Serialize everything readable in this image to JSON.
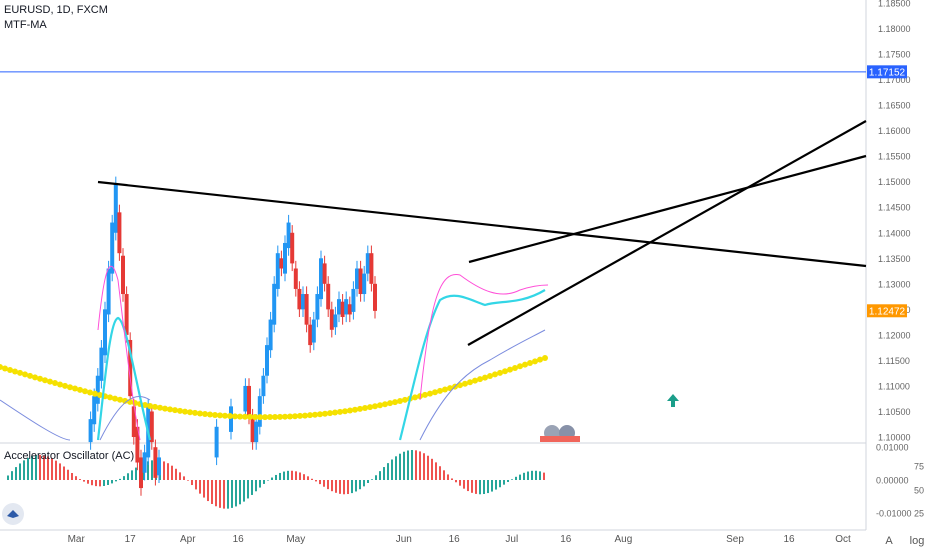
{
  "header": {
    "symbol_line": "EURUSD, 1D, FXCM",
    "indicator_line": "MTF-MA",
    "osc_label": "Accelerator Oscillator (AC)"
  },
  "price_axis": {
    "min": 1.1,
    "max": 1.185,
    "ticks": [
      "1.18500",
      "1.18000",
      "1.17500",
      "1.17000",
      "1.16500",
      "1.16000",
      "1.15500",
      "1.15000",
      "1.14500",
      "1.14000",
      "1.13500",
      "1.13000",
      "1.12500",
      "1.12000",
      "1.11500",
      "1.11000",
      "1.10500",
      "1.10000"
    ],
    "hline_price": 1.17152,
    "hline_label": "1.17152",
    "last_price": 1.12472,
    "last_label": "1.12472"
  },
  "osc_axis": {
    "ticks": [
      "0.01000",
      "0.00000",
      "-0.01000"
    ],
    "pct_ticks": [
      "75",
      "50",
      "25"
    ]
  },
  "x_axis": {
    "labels": [
      {
        "day": 2,
        "text": "Mar"
      },
      {
        "day": 17,
        "text": "17"
      },
      {
        "day": 33,
        "text": "Apr"
      },
      {
        "day": 47,
        "text": "16"
      },
      {
        "day": 63,
        "text": "May"
      },
      {
        "day": 93,
        "text": "Jun"
      },
      {
        "day": 107,
        "text": "16"
      },
      {
        "day": 123,
        "text": "Jul"
      },
      {
        "day": 138,
        "text": "16"
      },
      {
        "day": 154,
        "text": "Aug"
      },
      {
        "day": 185,
        "text": "Sep"
      },
      {
        "day": 200,
        "text": "16"
      },
      {
        "day": 215,
        "text": "Oct"
      }
    ]
  },
  "bottom_buttons": [
    "A",
    "log"
  ],
  "colors": {
    "up": "#2196f3",
    "down": "#e53935",
    "accent_pink": "#ff4fd8",
    "hline": "#2962ff",
    "last_bg": "#ff9800",
    "ma_yellow": "#f5e100",
    "ma_cyan": "#33d6e6",
    "ma_slow": "#7b8cde",
    "osc_up": "#26a69a",
    "osc_down": "#ef5350"
  },
  "chart_data": {
    "type": "candlestick",
    "price_segments": [
      {
        "name": "M2",
        "days": [
          0,
          16,
          31,
          59,
          90,
          113,
          128
        ]
      },
      {
        "name": "M1",
        "days": [
          0,
          6,
          13,
          19,
          27,
          33,
          40,
          46,
          54,
          60,
          68,
          74,
          82,
          88,
          96,
          104,
          113,
          118,
          122,
          125,
          128,
          130
        ]
      }
    ],
    "candles_prices": [
      [
        1.099,
        1.1035
      ],
      [
        1.1025,
        1.108
      ],
      [
        1.1065,
        1.112
      ],
      [
        1.111,
        1.1175
      ],
      [
        1.116,
        1.125
      ],
      [
        1.124,
        1.133
      ],
      [
        1.132,
        1.142
      ],
      [
        1.14,
        1.1495
      ],
      [
        1.144,
        1.136
      ],
      [
        1.1355,
        1.128
      ],
      [
        1.128,
        1.12
      ],
      [
        1.119,
        1.108
      ],
      [
        1.106,
        1.1
      ],
      [
        1.102,
        1.095
      ],
      [
        1.096,
        1.09
      ],
      [
        1.093,
        1.097
      ],
      [
        1.096,
        1.106
      ],
      [
        1.105,
        1.099
      ],
      [
        1.098,
        1.092
      ],
      [
        1.0925,
        1.096
      ],
      [
        1.096,
        1.102
      ],
      [
        1.101,
        1.106
      ],
      [
        1.105,
        1.11
      ],
      [
        1.11,
        1.104
      ],
      [
        1.104,
        1.099
      ],
      [
        1.099,
        1.103
      ],
      [
        1.102,
        1.108
      ],
      [
        1.108,
        1.112
      ],
      [
        1.112,
        1.118
      ],
      [
        1.117,
        1.123
      ],
      [
        1.122,
        1.13
      ],
      [
        1.129,
        1.136
      ],
      [
        1.135,
        1.133
      ],
      [
        1.132,
        1.138
      ],
      [
        1.137,
        1.142
      ],
      [
        1.14,
        1.134
      ],
      [
        1.133,
        1.129
      ],
      [
        1.129,
        1.125
      ],
      [
        1.125,
        1.128
      ],
      [
        1.128,
        1.122
      ],
      [
        1.122,
        1.118
      ],
      [
        1.1185,
        1.123
      ],
      [
        1.123,
        1.128
      ],
      [
        1.127,
        1.135
      ],
      [
        1.134,
        1.13
      ],
      [
        1.13,
        1.125
      ],
      [
        1.125,
        1.121
      ],
      [
        1.1215,
        1.124
      ],
      [
        1.124,
        1.127
      ],
      [
        1.1265,
        1.1235
      ],
      [
        1.124,
        1.127
      ],
      [
        1.126,
        1.124
      ],
      [
        1.1245,
        1.129
      ],
      [
        1.129,
        1.133
      ],
      [
        1.133,
        1.128
      ],
      [
        1.128,
        1.132
      ],
      [
        1.132,
        1.136
      ],
      [
        1.136,
        1.13
      ],
      [
        1.13,
        1.1247
      ]
    ]
  }
}
